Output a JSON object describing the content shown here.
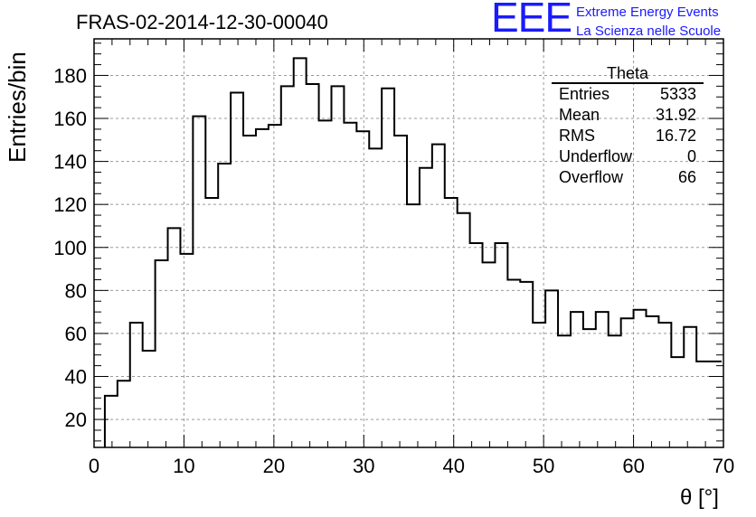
{
  "run_title": "FRAS-02-2014-12-30-00040",
  "logo": {
    "letters": "EEE",
    "line1": "Extreme Energy Events",
    "line2": "La Scienza nelle Scuole",
    "color": "#1a1aff"
  },
  "stats_box": {
    "title": "Theta",
    "rows": [
      {
        "label": "Entries",
        "value": "5333"
      },
      {
        "label": "Mean",
        "value": "31.92"
      },
      {
        "label": "RMS",
        "value": "16.72"
      },
      {
        "label": "Underflow",
        "value": "0"
      },
      {
        "label": "Overflow",
        "value": "66"
      }
    ]
  },
  "chart_data": {
    "type": "histogram",
    "title": "FRAS-02-2014-12-30-00040",
    "xlabel": "θ [°]",
    "ylabel": "Entries/bin",
    "xlim": [
      0,
      70
    ],
    "ylim": [
      7,
      197
    ],
    "grid": true,
    "bin_width": 1.4,
    "x_edges_start": 1.2,
    "xticks": [
      "0",
      "10",
      "20",
      "30",
      "40",
      "50",
      "60",
      "70"
    ],
    "yticks": [
      "20",
      "40",
      "60",
      "80",
      "100",
      "120",
      "140",
      "160",
      "180"
    ],
    "values": [
      31,
      38,
      65,
      52,
      94,
      109,
      97,
      161,
      123,
      139,
      172,
      152,
      155,
      157,
      175,
      188,
      176,
      159,
      175,
      158,
      154,
      146,
      174,
      152,
      120,
      137,
      148,
      123,
      116,
      102,
      93,
      102,
      85,
      84,
      65,
      80,
      59,
      70,
      62,
      70,
      59,
      67,
      71,
      68,
      65,
      49,
      63,
      47,
      47
    ]
  }
}
